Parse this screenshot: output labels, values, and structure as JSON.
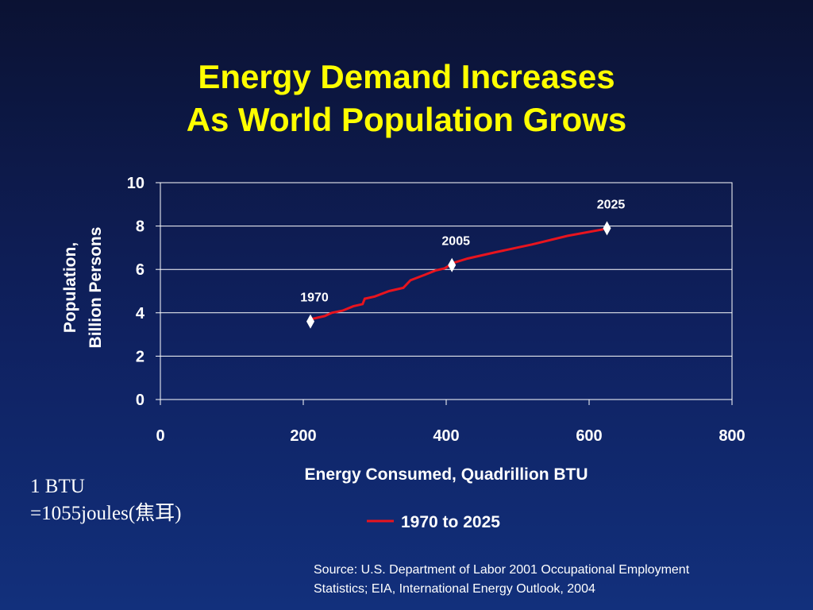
{
  "title_line1": "Energy Demand Increases",
  "title_line2": "As World Population Grows",
  "note_line1": "1 BTU",
  "note_line2": "=1055joules(焦耳)",
  "source_line1": "Source: U.S. Department of Labor 2001 Occupational Employment",
  "source_line2": "Statistics; EIA, International Energy Outlook, 2004",
  "chart_data": {
    "type": "line",
    "xlabel": "Energy Consumed, Quadrillion BTU",
    "ylabel_line1": "Population,",
    "ylabel_line2": "Billion Persons",
    "xlim": [
      0,
      800
    ],
    "ylim": [
      0,
      10
    ],
    "xticks": [
      0,
      200,
      400,
      600,
      800
    ],
    "yticks": [
      0,
      2,
      4,
      6,
      8,
      10
    ],
    "grid": "horizontal",
    "legend_position": "bottom",
    "series": [
      {
        "name": "1970 to 2025",
        "color": "#e8141e",
        "points": [
          {
            "x": 210,
            "y": 3.7
          },
          {
            "x": 230,
            "y": 3.85
          },
          {
            "x": 240,
            "y": 4.0
          },
          {
            "x": 255,
            "y": 4.1
          },
          {
            "x": 270,
            "y": 4.3
          },
          {
            "x": 283,
            "y": 4.4
          },
          {
            "x": 286,
            "y": 4.65
          },
          {
            "x": 300,
            "y": 4.75
          },
          {
            "x": 320,
            "y": 5.0
          },
          {
            "x": 340,
            "y": 5.15
          },
          {
            "x": 350,
            "y": 5.5
          },
          {
            "x": 370,
            "y": 5.75
          },
          {
            "x": 385,
            "y": 5.95
          },
          {
            "x": 398,
            "y": 6.05
          },
          {
            "x": 410,
            "y": 6.3
          },
          {
            "x": 430,
            "y": 6.5
          },
          {
            "x": 470,
            "y": 6.8
          },
          {
            "x": 520,
            "y": 7.15
          },
          {
            "x": 570,
            "y": 7.55
          },
          {
            "x": 620,
            "y": 7.85
          }
        ]
      }
    ],
    "markers": [
      {
        "label": "1970",
        "x": 210,
        "y": 3.6
      },
      {
        "label": "2005",
        "x": 408,
        "y": 6.2
      },
      {
        "label": "2025",
        "x": 625,
        "y": 7.9
      }
    ]
  }
}
